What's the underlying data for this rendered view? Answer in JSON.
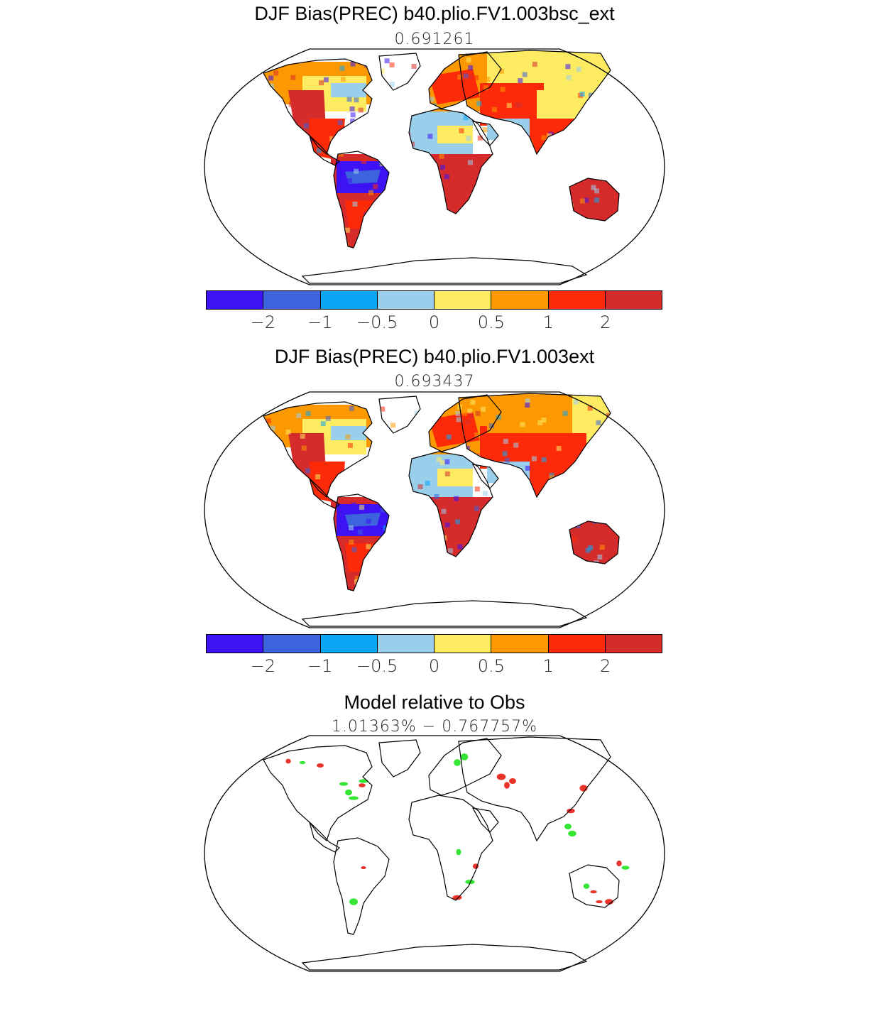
{
  "panels": [
    {
      "title": "DJF Bias(PREC) b40.plio.FV1.003bsc_ext",
      "subtitle": "0.691261",
      "colorbar": {
        "colors": [
          "#3d12f5",
          "#3d64dd",
          "#0aa7f5",
          "#9acfec",
          "#fdeb62",
          "#fd9900",
          "#fd2a0a",
          "#d52b2b"
        ],
        "tick_labels": [
          "−2",
          "−1",
          "−0.5",
          "0",
          "0.5",
          "1",
          "2"
        ]
      }
    },
    {
      "title": "DJF Bias(PREC) b40.plio.FV1.003ext",
      "subtitle": "0.693437",
      "colorbar": {
        "colors": [
          "#3d12f5",
          "#3d64dd",
          "#0aa7f5",
          "#9acfec",
          "#fdeb62",
          "#fd9900",
          "#fd2a0a",
          "#d52b2b"
        ],
        "tick_labels": [
          "−2",
          "−1",
          "−0.5",
          "0",
          "0.5",
          "1",
          "2"
        ]
      }
    },
    {
      "title": "Model relative to Obs",
      "subtitle": "1.01363%  −  0.767757%",
      "marker_colors": [
        "#e8322a",
        "#35e635"
      ]
    }
  ]
}
